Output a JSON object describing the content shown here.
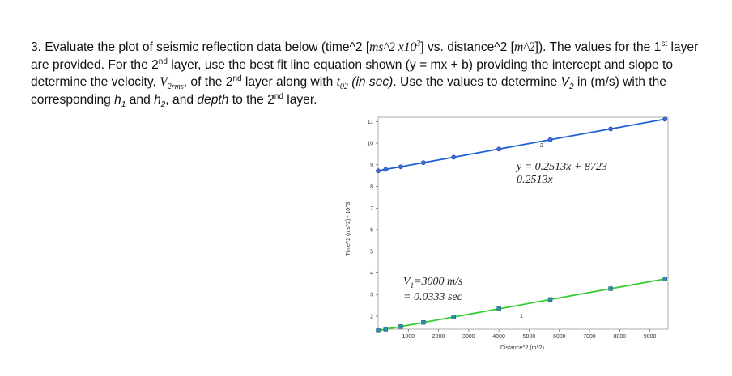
{
  "question": {
    "p1": "3. Evaluate the plot of seismic reflection data below (time^2 [",
    "m1": "ms^2 x10",
    "s1": "3",
    "p2": "] vs. distance^2 [",
    "m2": "m^2",
    "p3": "]).  The values for the 1",
    "s2": "st",
    "p4": " layer are provided.  For the 2",
    "s3": "nd",
    "p5": " layer, use the best fit line equation shown (y = mx + b) providing the intercept and slope to determine the velocity, ",
    "m3": "V",
    "b1": "2rms",
    "p6": ", of the 2",
    "s4": "nd",
    "p7": " layer along with ",
    "m4": "t",
    "b2": "02",
    "i1": " (in sec)",
    "p8": ". Use the values to determine ",
    "m5": "V",
    "b3": "2",
    "p9": " in (m/s) with the corresponding ",
    "m6": "h",
    "b4": "1",
    "p10": " and ",
    "m7": "h",
    "b5": "2",
    "p11": ", and ",
    "i2": "depth",
    "p12": " to the 2",
    "s5": "nd",
    "p13": " layer."
  },
  "chart_data": {
    "type": "scatter",
    "xlabel": "Distance^2 (m^2)",
    "ylabel": "Time^2 (ms^2) - 10^3",
    "xlim": [
      0,
      9600
    ],
    "ylim": [
      1.4,
      11.2
    ],
    "xticks": [
      1000,
      2000,
      3000,
      4000,
      5000,
      6000,
      7000,
      8000,
      9000
    ],
    "yticks": [
      2,
      3,
      4,
      5,
      6,
      7,
      8,
      9,
      10,
      11
    ],
    "grid": false,
    "series": [
      {
        "name": "2",
        "color": "#1f5fd6",
        "marker": "circle",
        "x": [
          0,
          250,
          750,
          1500,
          2500,
          4000,
          5700,
          7700,
          9500
        ],
        "y": [
          8.72,
          8.79,
          8.91,
          9.1,
          9.35,
          9.73,
          10.16,
          10.66,
          11.11
        ]
      },
      {
        "name": "1",
        "color": "#33cc33",
        "marker": "square",
        "x": [
          0,
          250,
          750,
          1500,
          2500,
          4000,
          5700,
          7700,
          9500
        ],
        "y": [
          1.33,
          1.4,
          1.52,
          1.71,
          1.96,
          2.34,
          2.77,
          3.27,
          3.72
        ]
      }
    ],
    "annotations": {
      "layer2_line1": "y = 0.2513x + 8723",
      "layer2_line2": "0.2513x",
      "layer1_line1": "V",
      "layer1_sub": "1",
      "layer1_line1b": "=3000 m/s",
      "layer1_line2": "= 0.0333 sec"
    }
  }
}
